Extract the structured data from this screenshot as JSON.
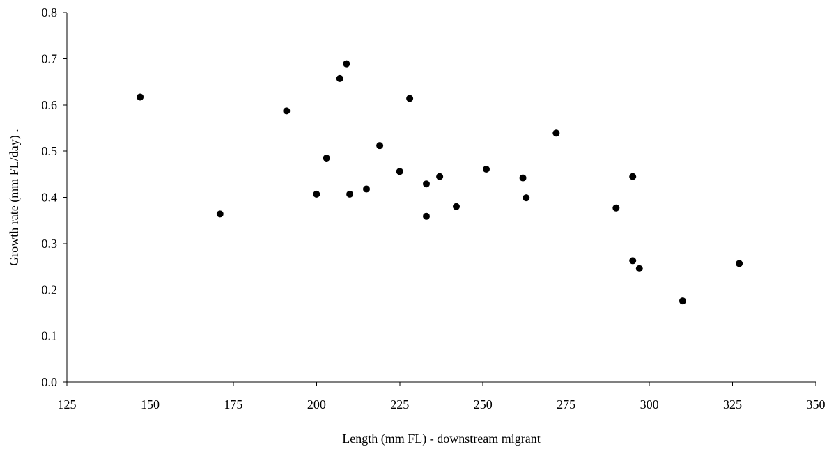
{
  "chart_data": {
    "type": "scatter",
    "title": "",
    "xlabel": "Length (mm FL) - downstream migrant",
    "ylabel": "Growth rate (mm FL/day) .",
    "xlim": [
      125,
      350
    ],
    "ylim": [
      0,
      0.8
    ],
    "x_ticks": [
      "125",
      "150",
      "175",
      "200",
      "225",
      "250",
      "275",
      "300",
      "325",
      "350"
    ],
    "y_ticks": [
      "0.0",
      "0.1",
      "0.2",
      "0.3",
      "0.4",
      "0.5",
      "0.6",
      "0.7",
      "0.8"
    ],
    "grid": false,
    "legend": "none",
    "marker_color": "#000000",
    "points": [
      {
        "x": 147,
        "y": 0.617
      },
      {
        "x": 171,
        "y": 0.364
      },
      {
        "x": 191,
        "y": 0.587
      },
      {
        "x": 200,
        "y": 0.407
      },
      {
        "x": 203,
        "y": 0.485
      },
      {
        "x": 207,
        "y": 0.657
      },
      {
        "x": 209,
        "y": 0.689
      },
      {
        "x": 210,
        "y": 0.407
      },
      {
        "x": 215,
        "y": 0.418
      },
      {
        "x": 219,
        "y": 0.512
      },
      {
        "x": 225,
        "y": 0.456
      },
      {
        "x": 228,
        "y": 0.614
      },
      {
        "x": 233,
        "y": 0.429
      },
      {
        "x": 233,
        "y": 0.359
      },
      {
        "x": 237,
        "y": 0.445
      },
      {
        "x": 242,
        "y": 0.38
      },
      {
        "x": 251,
        "y": 0.461
      },
      {
        "x": 262,
        "y": 0.442
      },
      {
        "x": 263,
        "y": 0.399
      },
      {
        "x": 272,
        "y": 0.539
      },
      {
        "x": 290,
        "y": 0.377
      },
      {
        "x": 295,
        "y": 0.445
      },
      {
        "x": 295,
        "y": 0.263
      },
      {
        "x": 297,
        "y": 0.246
      },
      {
        "x": 310,
        "y": 0.176
      },
      {
        "x": 327,
        "y": 0.257
      }
    ]
  }
}
